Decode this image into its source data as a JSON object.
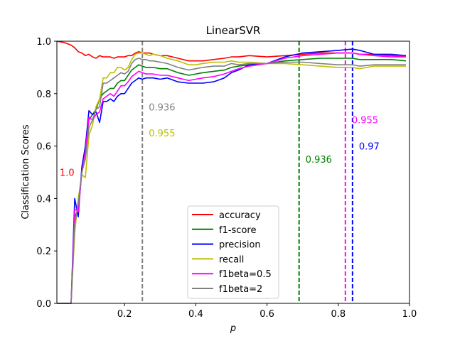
{
  "chart_data": {
    "type": "line",
    "title": "LinearSVR",
    "xlabel": "p",
    "ylabel": "Classification Scores",
    "xlim": [
      0.01,
      1.0
    ],
    "ylim": [
      0.0,
      1.0
    ],
    "xticks": [
      "0.2",
      "0.4",
      "0.6",
      "0.8",
      "1.0"
    ],
    "xtick_values": [
      0.2,
      0.4,
      0.6,
      0.8,
      1.0
    ],
    "yticks": [
      "0.0",
      "0.2",
      "0.4",
      "0.6",
      "0.8",
      "1.0"
    ],
    "ytick_values": [
      0.0,
      0.2,
      0.4,
      0.6,
      0.8,
      1.0
    ],
    "grid": false,
    "legend_position": "lower-center",
    "x": [
      0.01,
      0.03,
      0.05,
      0.06,
      0.07,
      0.08,
      0.09,
      0.1,
      0.11,
      0.12,
      0.13,
      0.14,
      0.15,
      0.16,
      0.17,
      0.18,
      0.19,
      0.2,
      0.21,
      0.22,
      0.23,
      0.24,
      0.25,
      0.26,
      0.27,
      0.28,
      0.3,
      0.32,
      0.35,
      0.38,
      0.4,
      0.42,
      0.45,
      0.48,
      0.5,
      0.52,
      0.55,
      0.6,
      0.65,
      0.7,
      0.75,
      0.8,
      0.84,
      0.86,
      0.9,
      0.95,
      0.99
    ],
    "series": [
      {
        "name": "accuracy",
        "color": "#ff0000",
        "values": [
          1.0,
          0.995,
          0.985,
          0.975,
          0.96,
          0.955,
          0.945,
          0.95,
          0.94,
          0.935,
          0.945,
          0.94,
          0.94,
          0.94,
          0.935,
          0.94,
          0.94,
          0.94,
          0.945,
          0.945,
          0.955,
          0.96,
          0.955,
          0.955,
          0.955,
          0.95,
          0.945,
          0.945,
          0.935,
          0.925,
          0.925,
          0.925,
          0.93,
          0.935,
          0.94,
          0.94,
          0.945,
          0.94,
          0.945,
          0.95,
          0.955,
          0.955,
          0.955,
          0.95,
          0.95,
          0.945,
          0.94
        ]
      },
      {
        "name": "f1-score",
        "color": "#008000",
        "values": [
          0.0,
          0.0,
          0.0,
          0.33,
          0.36,
          0.5,
          0.6,
          0.7,
          0.72,
          0.74,
          0.78,
          0.8,
          0.81,
          0.82,
          0.82,
          0.84,
          0.85,
          0.85,
          0.87,
          0.89,
          0.9,
          0.91,
          0.905,
          0.9,
          0.9,
          0.9,
          0.895,
          0.895,
          0.88,
          0.87,
          0.875,
          0.88,
          0.885,
          0.89,
          0.9,
          0.905,
          0.91,
          0.915,
          0.925,
          0.93,
          0.935,
          0.935,
          0.935,
          0.93,
          0.93,
          0.93,
          0.925
        ]
      },
      {
        "name": "precision",
        "color": "#0000ff",
        "values": [
          0.0,
          0.0,
          0.0,
          0.4,
          0.33,
          0.52,
          0.6,
          0.735,
          0.72,
          0.73,
          0.69,
          0.77,
          0.77,
          0.78,
          0.77,
          0.79,
          0.8,
          0.8,
          0.82,
          0.84,
          0.85,
          0.86,
          0.855,
          0.86,
          0.86,
          0.86,
          0.855,
          0.86,
          0.845,
          0.84,
          0.84,
          0.84,
          0.845,
          0.86,
          0.88,
          0.89,
          0.91,
          0.915,
          0.94,
          0.955,
          0.96,
          0.965,
          0.97,
          0.965,
          0.95,
          0.95,
          0.945
        ]
      },
      {
        "name": "recall",
        "color": "#bfbf00",
        "values": [
          0.0,
          0.0,
          0.0,
          0.27,
          0.4,
          0.49,
          0.48,
          0.64,
          0.68,
          0.75,
          0.78,
          0.86,
          0.86,
          0.88,
          0.88,
          0.9,
          0.9,
          0.89,
          0.9,
          0.93,
          0.95,
          0.955,
          0.955,
          0.95,
          0.945,
          0.95,
          0.945,
          0.935,
          0.925,
          0.91,
          0.91,
          0.915,
          0.92,
          0.92,
          0.925,
          0.92,
          0.92,
          0.915,
          0.915,
          0.91,
          0.905,
          0.9,
          0.9,
          0.895,
          0.905,
          0.905,
          0.905
        ]
      },
      {
        "name": "f1beta=0.5",
        "color": "#ff00ff",
        "values": [
          0.0,
          0.0,
          0.0,
          0.36,
          0.35,
          0.5,
          0.58,
          0.71,
          0.7,
          0.72,
          0.73,
          0.78,
          0.79,
          0.8,
          0.79,
          0.81,
          0.83,
          0.83,
          0.845,
          0.865,
          0.875,
          0.885,
          0.88,
          0.875,
          0.875,
          0.875,
          0.87,
          0.87,
          0.86,
          0.85,
          0.855,
          0.86,
          0.865,
          0.875,
          0.885,
          0.895,
          0.905,
          0.915,
          0.935,
          0.945,
          0.95,
          0.955,
          0.955,
          0.95,
          0.945,
          0.94,
          0.94
        ]
      },
      {
        "name": "f1beta=2",
        "color": "#808080",
        "values": [
          0.0,
          0.0,
          0.0,
          0.3,
          0.38,
          0.5,
          0.55,
          0.67,
          0.7,
          0.74,
          0.75,
          0.84,
          0.84,
          0.85,
          0.86,
          0.87,
          0.88,
          0.875,
          0.885,
          0.915,
          0.93,
          0.935,
          0.93,
          0.93,
          0.925,
          0.925,
          0.92,
          0.915,
          0.9,
          0.89,
          0.895,
          0.9,
          0.905,
          0.905,
          0.915,
          0.91,
          0.915,
          0.915,
          0.92,
          0.92,
          0.915,
          0.91,
          0.91,
          0.905,
          0.91,
          0.91,
          0.91
        ]
      }
    ],
    "vlines": [
      {
        "x": 0.25,
        "color": "#808080"
      },
      {
        "x": 0.69,
        "color": "#008000"
      },
      {
        "x": 0.82,
        "color": "#ff00ff"
      },
      {
        "x": 0.84,
        "color": "#0000ff"
      }
    ],
    "annotations": [
      {
        "text": "1.0",
        "x": 0.01,
        "y": 0.5,
        "color": "#ff0000"
      },
      {
        "text": "0.936",
        "x": 0.26,
        "y": 0.75,
        "color": "#808080"
      },
      {
        "text": "0.955",
        "x": 0.26,
        "y": 0.65,
        "color": "#bfbf00"
      },
      {
        "text": "0.936",
        "x": 0.7,
        "y": 0.55,
        "color": "#008000"
      },
      {
        "text": "0.955",
        "x": 0.83,
        "y": 0.7,
        "color": "#ff00ff"
      },
      {
        "text": "0.97",
        "x": 0.85,
        "y": 0.6,
        "color": "#0000ff"
      }
    ]
  }
}
